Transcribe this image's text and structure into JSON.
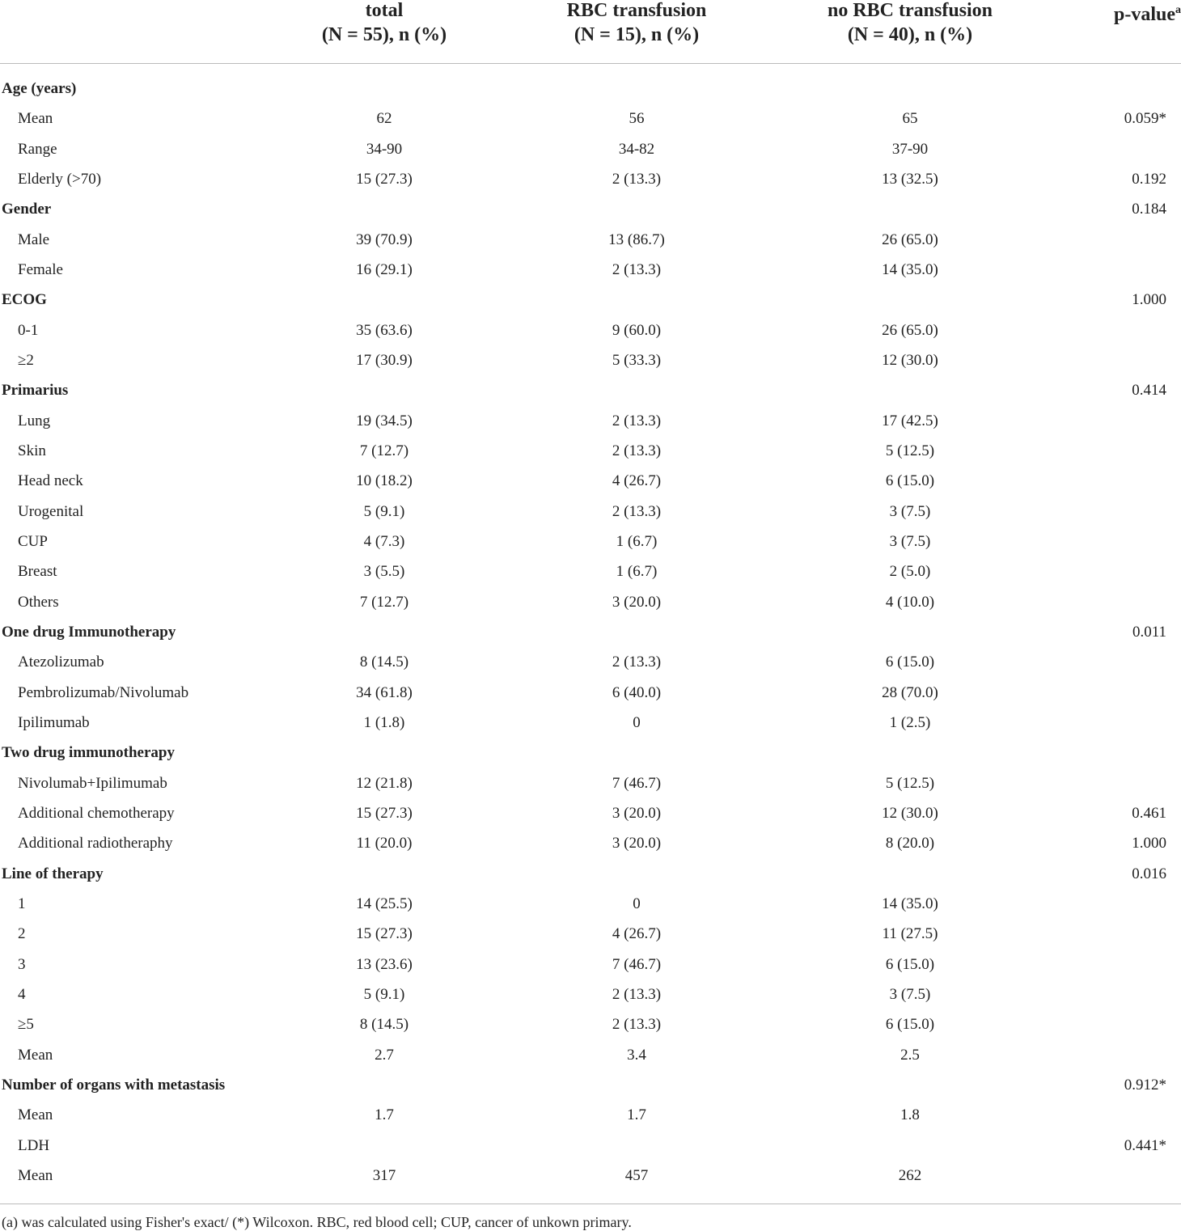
{
  "header": {
    "columns": [
      {
        "line1": "total",
        "line2": "(N = 55), n (%)"
      },
      {
        "line1": "RBC transfusion",
        "line2": "(N = 15), n (%)"
      },
      {
        "line1": "no RBC transfusion",
        "line2": "(N = 40), n (%)"
      }
    ],
    "p_value": {
      "text": "p-value",
      "sup": "a"
    }
  },
  "groups": [
    {
      "title": "Age (years)",
      "rows": [
        {
          "label": "Mean",
          "total": "62",
          "rbc": "56",
          "no_rbc": "65",
          "p": "0.059*"
        },
        {
          "label": "Range",
          "total": "34-90",
          "rbc": "34-82",
          "no_rbc": "37-90"
        },
        {
          "label": "Elderly (>70)",
          "total": "15 (27.3)",
          "rbc": "2 (13.3)",
          "no_rbc": "13 (32.5)",
          "p": "0.192"
        }
      ]
    },
    {
      "title": "Gender",
      "p": "0.184",
      "rows": [
        {
          "label": "Male",
          "total": "39 (70.9)",
          "rbc": "13 (86.7)",
          "no_rbc": "26 (65.0)"
        },
        {
          "label": "Female",
          "total": "16 (29.1)",
          "rbc": "2 (13.3)",
          "no_rbc": "14 (35.0)"
        }
      ]
    },
    {
      "title": "ECOG",
      "p": "1.000",
      "rows": [
        {
          "label": "0-1",
          "total": "35 (63.6)",
          "rbc": "9 (60.0)",
          "no_rbc": "26 (65.0)"
        },
        {
          "label": "≥2",
          "total": "17 (30.9)",
          "rbc": "5 (33.3)",
          "no_rbc": "12 (30.0)"
        }
      ]
    },
    {
      "title": "Primarius",
      "p": "0.414",
      "rows": [
        {
          "label": "Lung",
          "total": "19 (34.5)",
          "rbc": "2 (13.3)",
          "no_rbc": "17 (42.5)"
        },
        {
          "label": "Skin",
          "total": "7 (12.7)",
          "rbc": "2 (13.3)",
          "no_rbc": "5 (12.5)"
        },
        {
          "label": "Head neck",
          "total": "10 (18.2)",
          "rbc": "4 (26.7)",
          "no_rbc": "6 (15.0)"
        },
        {
          "label": "Urogenital",
          "total": "5 (9.1)",
          "rbc": "2 (13.3)",
          "no_rbc": "3 (7.5)"
        },
        {
          "label": "CUP",
          "total": "4 (7.3)",
          "rbc": "1 (6.7)",
          "no_rbc": "3 (7.5)"
        },
        {
          "label": "Breast",
          "total": "3 (5.5)",
          "rbc": "1 (6.7)",
          "no_rbc": "2 (5.0)"
        },
        {
          "label": "Others",
          "total": "7 (12.7)",
          "rbc": "3 (20.0)",
          "no_rbc": "4 (10.0)"
        }
      ]
    },
    {
      "title": "One drug Immunotherapy",
      "p": "0.011",
      "rows": [
        {
          "label": "Atezolizumab",
          "total": "8 (14.5)",
          "rbc": "2 (13.3)",
          "no_rbc": "6 (15.0)"
        },
        {
          "label": "Pembrolizumab/Nivolumab",
          "total": "34 (61.8)",
          "rbc": "6 (40.0)",
          "no_rbc": "28 (70.0)"
        },
        {
          "label": "Ipilimumab",
          "total": "1 (1.8)",
          "rbc": "0",
          "no_rbc": "1 (2.5)"
        }
      ]
    },
    {
      "title": "Two drug immunotherapy",
      "rows": [
        {
          "label": "Nivolumab+Ipilimumab",
          "total": "12 (21.8)",
          "rbc": "7 (46.7)",
          "no_rbc": "5 (12.5)"
        },
        {
          "label": "Additional chemotherapy",
          "total": "15 (27.3)",
          "rbc": "3 (20.0)",
          "no_rbc": "12 (30.0)",
          "p": "0.461"
        },
        {
          "label": "Additional radiotheraphy",
          "total": "11 (20.0)",
          "rbc": "3 (20.0)",
          "no_rbc": "8 (20.0)",
          "p": "1.000"
        }
      ]
    },
    {
      "title": "Line of therapy",
      "p": "0.016",
      "rows": [
        {
          "label": "1",
          "total": "14 (25.5)",
          "rbc": "0",
          "no_rbc": "14 (35.0)"
        },
        {
          "label": "2",
          "total": "15 (27.3)",
          "rbc": "4 (26.7)",
          "no_rbc": "11 (27.5)"
        },
        {
          "label": "3",
          "total": "13 (23.6)",
          "rbc": "7 (46.7)",
          "no_rbc": "6 (15.0)"
        },
        {
          "label": "4",
          "total": "5 (9.1)",
          "rbc": "2 (13.3)",
          "no_rbc": "3 (7.5)"
        },
        {
          "label": "≥5",
          "total": "8 (14.5)",
          "rbc": "2 (13.3)",
          "no_rbc": "6 (15.0)"
        },
        {
          "label": "Mean",
          "total": "2.7",
          "rbc": "3.4",
          "no_rbc": "2.5"
        }
      ]
    },
    {
      "title": "Number of organs with metastasis",
      "p": "0.912*",
      "rows": [
        {
          "label": "Mean",
          "total": "1.7",
          "rbc": "1.7",
          "no_rbc": "1.8"
        },
        {
          "label": "LDH",
          "p": "0.441*"
        },
        {
          "label": "Mean",
          "total": "317",
          "rbc": "457",
          "no_rbc": "262"
        }
      ]
    }
  ],
  "footnote": "(a) was calculated using Fisher's exact/ (*) Wilcoxon. RBC, red blood cell; CUP, cancer of unkown primary."
}
